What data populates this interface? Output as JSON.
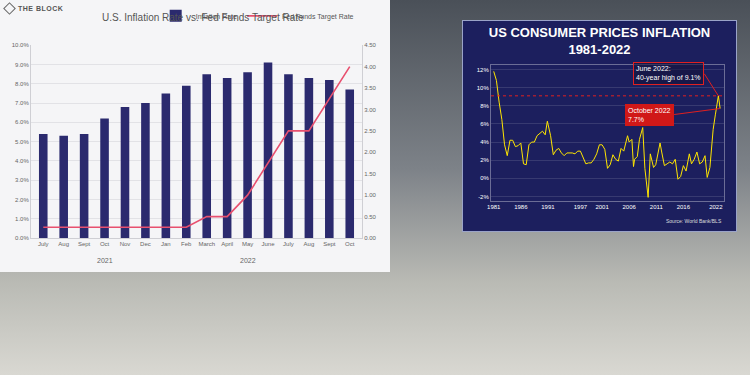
{
  "chart_data": [
    {
      "type": "bar",
      "title": "U.S. Inflation Rate vs. Fed Funds Target Rate",
      "logo": "THE BLOCK",
      "categories": [
        "July",
        "Aug",
        "Sept",
        "Oct",
        "Nov",
        "Dec",
        "Jan",
        "Feb",
        "March",
        "April",
        "May",
        "June",
        "July",
        "Aug",
        "Sept",
        "Oct"
      ],
      "series": [
        {
          "name": "Inflation Rate",
          "type": "bar",
          "color": "#2b2a6e",
          "values": [
            5.4,
            5.3,
            5.4,
            6.2,
            6.8,
            7.0,
            7.5,
            7.9,
            8.5,
            8.3,
            8.6,
            9.1,
            8.5,
            8.3,
            8.2,
            7.7
          ]
        },
        {
          "name": "Fed Funds Target Rate",
          "type": "line",
          "color": "#e8506f",
          "axis": "y2",
          "values": [
            0.25,
            0.25,
            0.25,
            0.25,
            0.25,
            0.25,
            0.25,
            0.25,
            0.5,
            0.5,
            1.0,
            1.75,
            2.5,
            2.5,
            3.25,
            4.0
          ]
        }
      ],
      "annotations": [
        {
          "text": "2021",
          "x": 3
        },
        {
          "text": "2022",
          "x": 10
        }
      ],
      "ylim": [
        0,
        10
      ],
      "yticks": [
        {
          "value": 0,
          "label": "0.0%"
        },
        {
          "value": 1,
          "label": "1.0%"
        },
        {
          "value": 2,
          "label": "2.0%"
        },
        {
          "value": 3,
          "label": "3.0%"
        },
        {
          "value": 4,
          "label": "4.0%"
        },
        {
          "value": 5,
          "label": "5.0%"
        },
        {
          "value": 6,
          "label": "6.0%"
        },
        {
          "value": 7,
          "label": "7.0%"
        },
        {
          "value": 8,
          "label": "8.0%"
        },
        {
          "value": 9,
          "label": "9.0%"
        },
        {
          "value": 10,
          "label": "10.0%"
        }
      ],
      "y2lim": [
        0,
        4.5
      ],
      "y2ticks": [
        {
          "value": 0,
          "label": "0.00"
        },
        {
          "value": 0.5,
          "label": "0.50"
        },
        {
          "value": 1,
          "label": "1.00"
        },
        {
          "value": 1.5,
          "label": "1.50"
        },
        {
          "value": 2,
          "label": "2.00"
        },
        {
          "value": 2.5,
          "label": "2.50"
        },
        {
          "value": 3,
          "label": "3.00"
        },
        {
          "value": 3.5,
          "label": "3.50"
        },
        {
          "value": 4,
          "label": "4.00"
        },
        {
          "value": 4.5,
          "label": "4.50"
        }
      ],
      "grid": true,
      "legend": "top"
    },
    {
      "type": "line",
      "title": "US CONSUMER PRICES INFLATION",
      "subtitle": "1981-2022",
      "source": "Source: World Bank/BLS",
      "color": "#ffe600",
      "x": [
        1981.0,
        1981.5,
        1982.0,
        1982.5,
        1983.0,
        1983.5,
        1984.0,
        1984.5,
        1985.0,
        1985.5,
        1986.0,
        1986.5,
        1987.0,
        1987.5,
        1988.0,
        1988.5,
        1989.0,
        1989.5,
        1990.0,
        1990.5,
        1990.9,
        1991.5,
        1992.0,
        1992.5,
        1993.0,
        1993.5,
        1994.0,
        1994.5,
        1995.0,
        1995.5,
        1996.0,
        1996.5,
        1997.0,
        1997.5,
        1998.0,
        1998.5,
        1999.0,
        1999.5,
        2000.0,
        2000.5,
        2001.0,
        2001.5,
        2002.0,
        2002.5,
        2003.0,
        2003.5,
        2004.0,
        2004.5,
        2005.0,
        2005.7,
        2006.0,
        2006.5,
        2006.8,
        2007.0,
        2007.5,
        2007.9,
        2008.5,
        2008.9,
        2009.5,
        2009.9,
        2010.5,
        2010.9,
        2011.7,
        2012.0,
        2012.5,
        2013.0,
        2013.5,
        2014.0,
        2014.5,
        2015.0,
        2015.5,
        2016.0,
        2016.5,
        2017.1,
        2017.5,
        2018.0,
        2018.5,
        2019.0,
        2019.5,
        2020.0,
        2020.4,
        2020.9,
        2021.3,
        2021.5,
        2021.9,
        2022.2,
        2022.46,
        2022.79
      ],
      "values": [
        11.8,
        10.8,
        8.4,
        6.5,
        3.7,
        2.5,
        4.2,
        4.2,
        3.5,
        3.6,
        3.9,
        1.6,
        1.5,
        3.7,
        4.0,
        4.0,
        4.7,
        5.0,
        5.2,
        4.8,
        6.3,
        4.7,
        2.6,
        3.1,
        3.3,
        2.8,
        2.5,
        2.8,
        2.8,
        2.8,
        2.7,
        3.0,
        3.0,
        2.2,
        1.6,
        1.7,
        1.7,
        2.1,
        2.7,
        3.7,
        3.7,
        3.2,
        1.1,
        1.5,
        2.6,
        2.1,
        1.9,
        3.3,
        3.0,
        4.7,
        4.0,
        4.3,
        1.3,
        2.1,
        2.4,
        4.3,
        5.6,
        1.1,
        -2.1,
        2.7,
        1.2,
        1.5,
        3.9,
        2.9,
        1.4,
        1.6,
        1.8,
        1.6,
        2.1,
        -0.1,
        0.2,
        1.4,
        0.8,
        2.7,
        1.6,
        2.1,
        2.9,
        1.6,
        1.8,
        2.5,
        0.1,
        1.2,
        4.2,
        5.4,
        7.0,
        8.5,
        9.1,
        7.7
      ],
      "hline": 9.1,
      "annotations": [
        {
          "lines": [
            "June 2022:",
            "40-year high of 9.1%"
          ],
          "x": 2022.46,
          "y": 9.1
        },
        {
          "lines": [
            "October 2022",
            "7.7%"
          ],
          "x": 2022.79,
          "y": 7.7
        }
      ],
      "xlim": [
        1980.5,
        2023.5
      ],
      "xticks": [
        1981,
        1986,
        1991,
        1997,
        2001,
        2006,
        2011,
        2016,
        2022
      ],
      "ylim": [
        -2.5,
        12.5
      ],
      "yticks": [
        {
          "value": -2,
          "label": "-2%"
        },
        {
          "value": 0,
          "label": "0%"
        },
        {
          "value": 2,
          "label": "2%"
        },
        {
          "value": 4,
          "label": "4%"
        },
        {
          "value": 6,
          "label": "6%"
        },
        {
          "value": 8,
          "label": "8%"
        },
        {
          "value": 10,
          "label": "10%"
        },
        {
          "value": 12,
          "label": "12%"
        }
      ],
      "grid": true
    }
  ]
}
